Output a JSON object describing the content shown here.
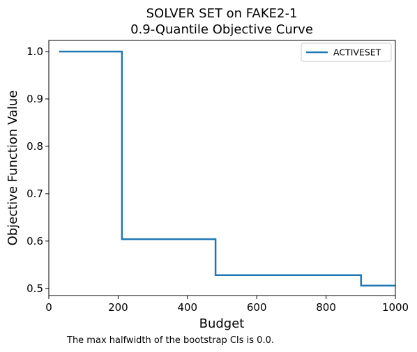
{
  "chart_data": {
    "type": "line",
    "step": "post",
    "title_line1": "SOLVER SET on FAKE2-1",
    "title_line2": "0.9-Quantile Objective Curve",
    "xlabel": "Budget",
    "ylabel": "Objective Function Value",
    "xlim": [
      0,
      1000
    ],
    "ylim": [
      0.485,
      1.0235
    ],
    "x_ticks": [
      0,
      200,
      400,
      600,
      800,
      1000
    ],
    "x_tick_labels": [
      "0",
      "200",
      "400",
      "600",
      "800",
      "1000"
    ],
    "y_ticks": [
      0.5,
      0.6,
      0.7,
      0.8,
      0.9,
      1.0
    ],
    "y_tick_labels": [
      "0.5",
      "0.6",
      "0.7",
      "0.8",
      "0.9",
      "1.0"
    ],
    "grid": false,
    "legend_position": "top-right",
    "series": [
      {
        "name": "ACTIVESET",
        "color": "#1f77b4",
        "x": [
          30,
          211,
          211,
          481,
          481,
          901,
          901,
          1000
        ],
        "y": [
          1.0,
          1.0,
          0.604,
          0.604,
          0.528,
          0.528,
          0.506,
          0.506
        ]
      }
    ],
    "annotation": "The max halfwidth of the bootstrap CIs is 0.0."
  }
}
